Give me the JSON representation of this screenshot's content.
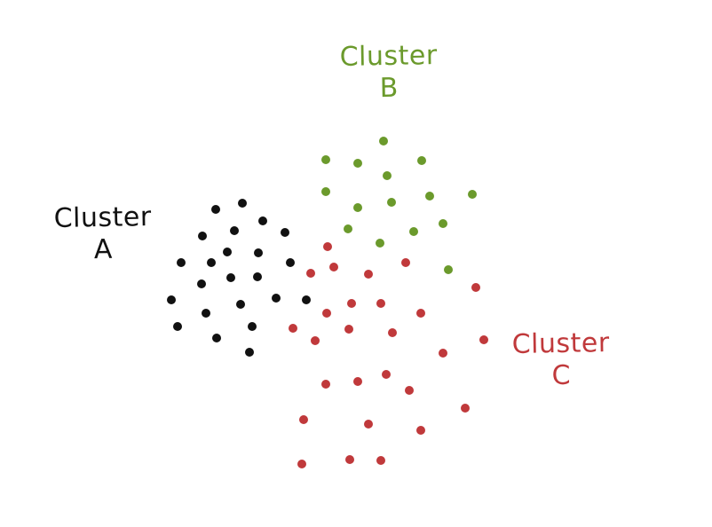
{
  "chart_data": {
    "type": "scatter",
    "title": "",
    "xlabel": "",
    "ylabel": "",
    "axes": "none",
    "grid": false,
    "series": [
      {
        "name": "Cluster A",
        "label_line1": "Cluster",
        "label_line2": "A",
        "color": "#111111",
        "points": [
          [
            243,
            236
          ],
          [
            273,
            229
          ],
          [
            296,
            249
          ],
          [
            228,
            266
          ],
          [
            264,
            260
          ],
          [
            321,
            262
          ],
          [
            256,
            284
          ],
          [
            204,
            296
          ],
          [
            238,
            296
          ],
          [
            291,
            285
          ],
          [
            327,
            296
          ],
          [
            227,
            320
          ],
          [
            260,
            313
          ],
          [
            290,
            312
          ],
          [
            193,
            338
          ],
          [
            271,
            343
          ],
          [
            311,
            336
          ],
          [
            345,
            338
          ],
          [
            232,
            353
          ],
          [
            200,
            368
          ],
          [
            284,
            368
          ],
          [
            244,
            381
          ],
          [
            281,
            397
          ]
        ]
      },
      {
        "name": "Cluster B",
        "label_line1": "Cluster",
        "label_line2": "B",
        "color": "#6b9a2c",
        "points": [
          [
            432,
            159
          ],
          [
            367,
            180
          ],
          [
            403,
            184
          ],
          [
            475,
            181
          ],
          [
            436,
            198
          ],
          [
            367,
            216
          ],
          [
            403,
            234
          ],
          [
            441,
            228
          ],
          [
            484,
            221
          ],
          [
            532,
            219
          ],
          [
            392,
            258
          ],
          [
            428,
            274
          ],
          [
            466,
            261
          ],
          [
            499,
            252
          ],
          [
            505,
            304
          ]
        ]
      },
      {
        "name": "Cluster C",
        "label_line1": "Cluster",
        "label_line2": "C",
        "color": "#c0393b",
        "points": [
          [
            369,
            278
          ],
          [
            376,
            301
          ],
          [
            350,
            308
          ],
          [
            415,
            309
          ],
          [
            457,
            296
          ],
          [
            536,
            324
          ],
          [
            368,
            353
          ],
          [
            396,
            342
          ],
          [
            429,
            342
          ],
          [
            474,
            353
          ],
          [
            330,
            370
          ],
          [
            355,
            384
          ],
          [
            393,
            371
          ],
          [
            442,
            375
          ],
          [
            545,
            383
          ],
          [
            499,
            398
          ],
          [
            367,
            433
          ],
          [
            403,
            430
          ],
          [
            435,
            422
          ],
          [
            461,
            440
          ],
          [
            524,
            460
          ],
          [
            342,
            473
          ],
          [
            415,
            478
          ],
          [
            474,
            485
          ],
          [
            340,
            523
          ],
          [
            394,
            518
          ],
          [
            429,
            519
          ]
        ]
      }
    ]
  }
}
